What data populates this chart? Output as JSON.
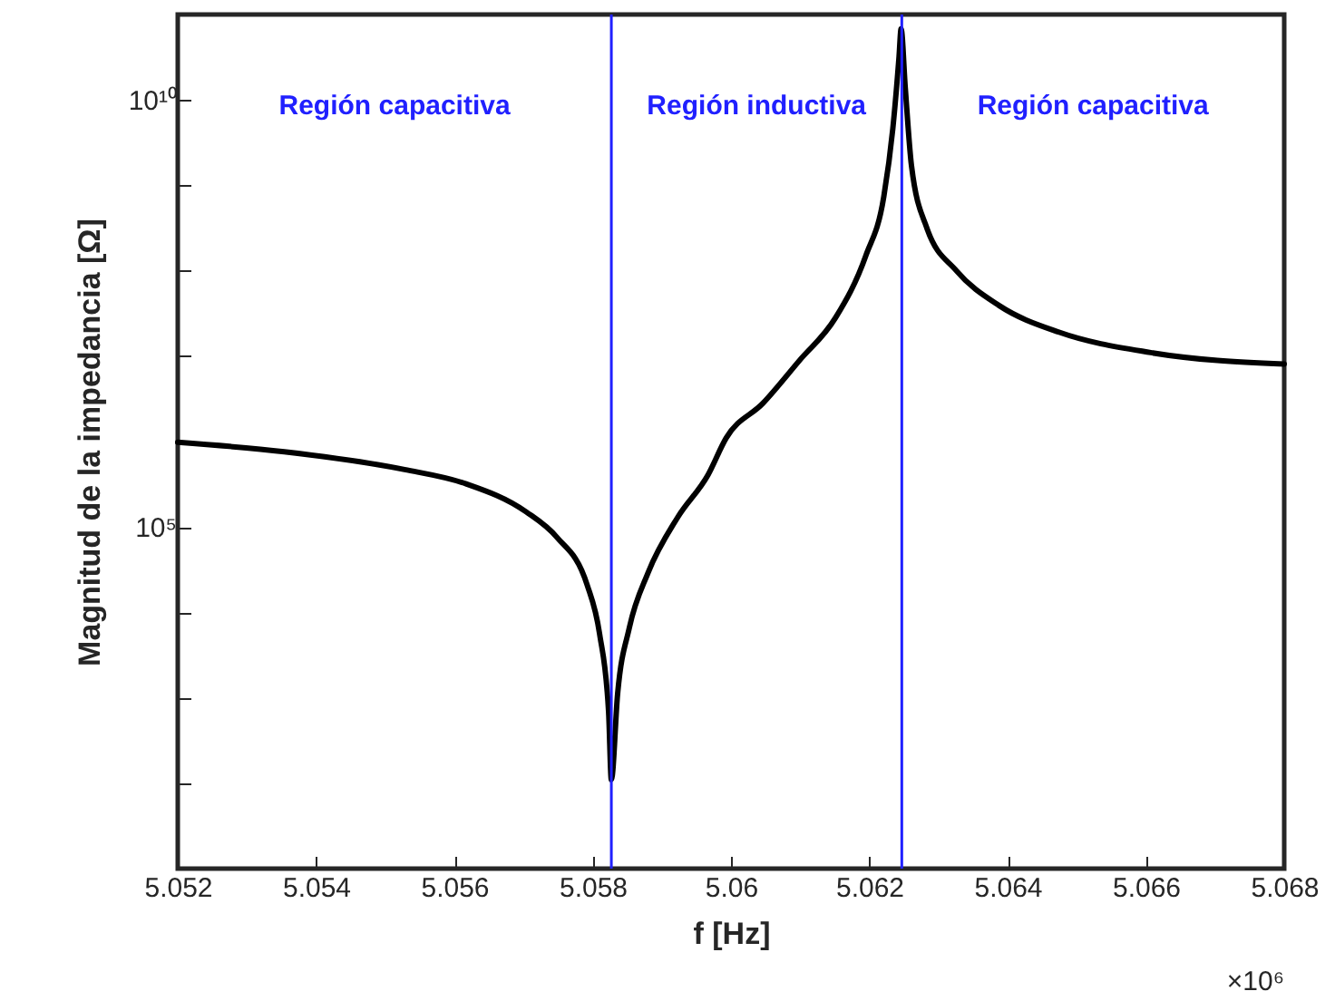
{
  "chart_data": {
    "type": "line",
    "xlabel": "f [Hz]",
    "ylabel": "Magnitud de la impedancia [Ω]",
    "x": [
      5.052,
      5.05354,
      5.05528,
      5.05617,
      5.05704,
      5.05748,
      5.05792,
      5.0581,
      5.05823,
      5.05827,
      5.05836,
      5.05853,
      5.0588,
      5.05923,
      5.05967,
      5.05993,
      5.06046,
      5.06099,
      5.06151,
      5.06195,
      5.06221,
      5.06234,
      5.06243,
      5.06246,
      5.06252,
      5.06261,
      5.06283,
      5.06326,
      5.06388,
      5.06475,
      5.06607,
      5.068
    ],
    "series": [
      {
        "color": "#000000",
        "values": [
          980000,
          760000,
          470000,
          320000,
          150000,
          76000,
          21000,
          5600,
          690,
          110,
          1100,
          6600,
          29000,
          130000,
          410000,
          1100000,
          2800000,
          8900000,
          28000000,
          150000000,
          740000000,
          4600000000,
          32000000000,
          68000000000,
          14000000000,
          1700000000,
          320000000,
          100000000,
          39000000,
          19000000,
          11000000,
          8100000
        ]
      }
    ],
    "log": "y",
    "xlim": [
      5.052,
      5.068
    ],
    "xticks": [
      5.052,
      5.054,
      5.056,
      5.058,
      5.06,
      5.062,
      5.064,
      5.066,
      5.068
    ],
    "ylim": [
      10,
      100000000000
    ],
    "yticks": [
      {
        "value": 10,
        "label": null
      },
      {
        "value": 100,
        "label": null
      },
      {
        "value": 1000,
        "label": null
      },
      {
        "value": 10000,
        "label": null
      },
      {
        "value": 100000,
        "label": "10⁵"
      },
      {
        "value": 1000000,
        "label": null
      },
      {
        "value": 10000000,
        "label": null
      },
      {
        "value": 100000000,
        "label": null
      },
      {
        "value": 1000000000,
        "label": null
      },
      {
        "value": 10000000000,
        "label": "10¹⁰"
      },
      {
        "value": 100000000000,
        "label": null
      }
    ],
    "grid": false,
    "marker": "none",
    "line_style": "solid",
    "ref_lines": [
      {
        "axis": "x",
        "value": 5.05827,
        "color": "#2020ff"
      },
      {
        "axis": "x",
        "value": 5.06247,
        "color": "#2020ff"
      }
    ],
    "annotations": [
      "Región capacitiva",
      "Región inductiva",
      "Región capacitiva",
      "×10⁶"
    ]
  }
}
